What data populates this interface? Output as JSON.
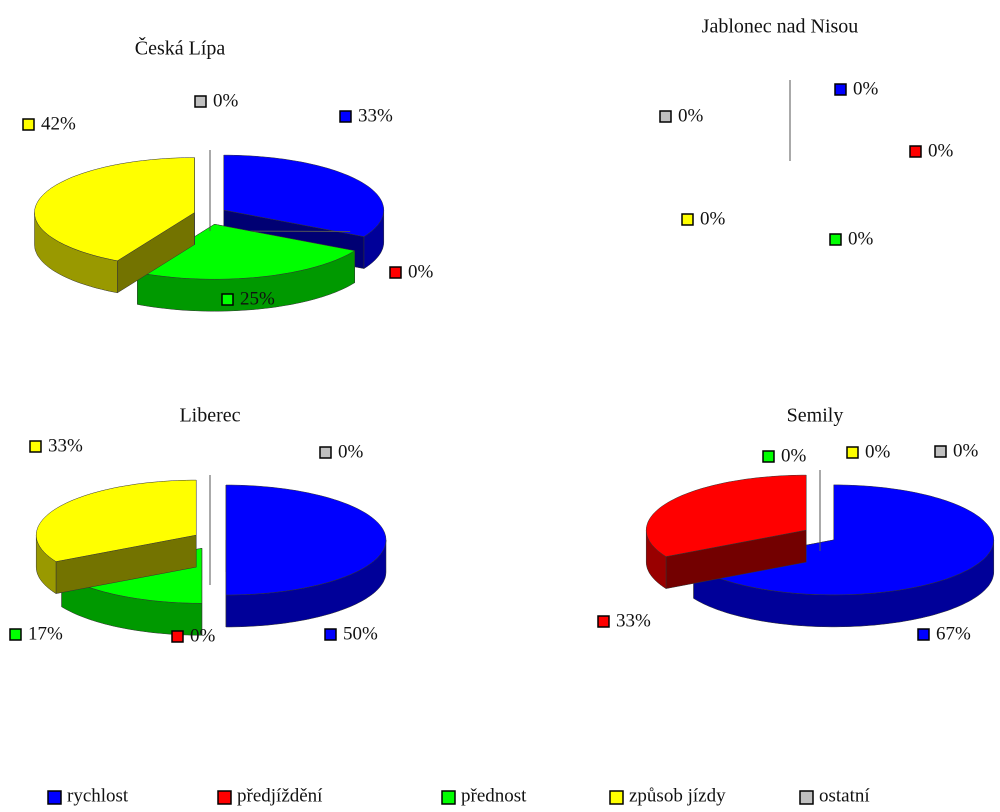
{
  "chart_data": [
    {
      "type": "pie",
      "title": "Česká Lípa",
      "values": [
        33,
        0,
        25,
        42,
        0
      ],
      "value_labels": [
        "33%",
        "0%",
        "25%",
        "42%",
        "0%"
      ]
    },
    {
      "type": "pie",
      "title": "Jablonec nad Nisou",
      "values": [
        0,
        0,
        0,
        0,
        0
      ],
      "value_labels": [
        "0%",
        "0%",
        "0%",
        "0%",
        "0%"
      ]
    },
    {
      "type": "pie",
      "title": "Liberec",
      "values": [
        50,
        0,
        17,
        33,
        0
      ],
      "value_labels": [
        "50%",
        "0%",
        "17%",
        "33%",
        "0%"
      ]
    },
    {
      "type": "pie",
      "title": "Semily",
      "values": [
        67,
        33,
        0,
        0,
        0
      ],
      "value_labels": [
        "67%",
        "33%",
        "0%",
        "0%",
        "0%"
      ]
    }
  ],
  "legend": {
    "categories": [
      "rychlost",
      "předjíždění",
      "přednost",
      "způsob jízdy",
      "ostatní"
    ],
    "colors": [
      "#0000ff",
      "#ff0000",
      "#00ff00",
      "#ffff00",
      "#c0c0c0"
    ]
  }
}
